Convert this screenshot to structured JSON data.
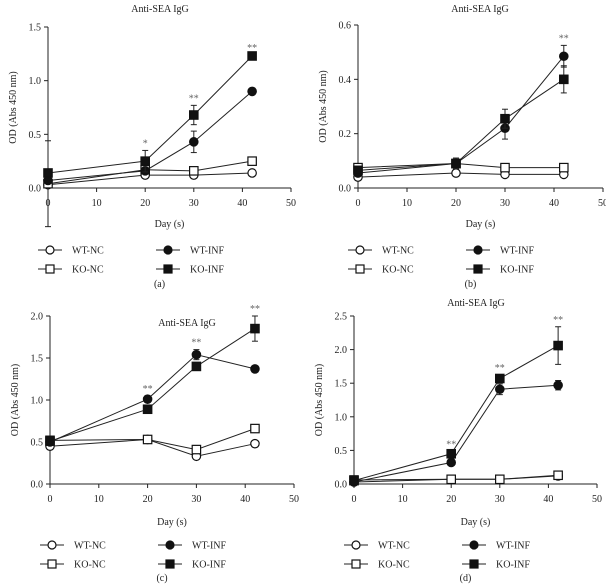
{
  "chart_data": [
    {
      "panel": "(a)",
      "type": "line",
      "title": "Anti-SEA IgG",
      "xlabel": "Day (s)",
      "ylabel": "OD (Abs 450 nm)",
      "xlim": [
        0,
        50
      ],
      "xticks": [
        0,
        10,
        20,
        30,
        40,
        50
      ],
      "ylim": [
        0,
        1.5
      ],
      "yticks": [
        "0.0",
        "0.5",
        "1.0",
        "1.5"
      ],
      "x": [
        0,
        20,
        30,
        42
      ],
      "series": [
        {
          "name": "WT-NC",
          "marker": "open-circle",
          "values": [
            0.03,
            0.12,
            0.12,
            0.14
          ],
          "errors": [
            0.02,
            0.02,
            0.01,
            0.01
          ]
        },
        {
          "name": "KO-NC",
          "marker": "open-square",
          "values": [
            0.04,
            0.17,
            0.16,
            0.25
          ],
          "errors": [
            0.4,
            0.02,
            0.01,
            0.01
          ]
        },
        {
          "name": "WT-INF",
          "marker": "filled-circle",
          "values": [
            0.07,
            0.16,
            0.43,
            0.9
          ],
          "errors": [
            0.01,
            0.02,
            0.1,
            0.03
          ]
        },
        {
          "name": "KO-INF",
          "marker": "filled-square",
          "values": [
            0.14,
            0.25,
            0.68,
            1.23
          ],
          "errors": [
            0.01,
            0.1,
            0.09,
            0.01
          ]
        }
      ],
      "annotations": [
        {
          "x": 20,
          "text": "*"
        },
        {
          "x": 30,
          "text": "**"
        },
        {
          "x": 42,
          "text": "**"
        }
      ]
    },
    {
      "panel": "(b)",
      "type": "line",
      "title": "Anti-SEA IgG",
      "xlabel": "Day (s)",
      "ylabel": "OD (Abs 450 nm)",
      "xlim": [
        0,
        50
      ],
      "xticks": [
        0,
        10,
        20,
        30,
        40,
        50
      ],
      "ylim": [
        0,
        0.6
      ],
      "yticks": [
        "0.0",
        "0.2",
        "0.4",
        "0.6"
      ],
      "x": [
        0,
        20,
        30,
        42
      ],
      "series": [
        {
          "name": "WT-NC",
          "marker": "open-circle",
          "values": [
            0.04,
            0.055,
            0.05,
            0.05
          ],
          "errors": [
            0,
            0,
            0,
            0
          ]
        },
        {
          "name": "KO-NC",
          "marker": "open-square",
          "values": [
            0.075,
            0.09,
            0.075,
            0.075
          ],
          "errors": [
            0,
            0.01,
            0,
            0
          ]
        },
        {
          "name": "WT-INF",
          "marker": "filled-circle",
          "values": [
            0.055,
            0.09,
            0.22,
            0.485
          ],
          "errors": [
            0,
            0.02,
            0.04,
            0.04
          ]
        },
        {
          "name": "KO-INF",
          "marker": "filled-square",
          "values": [
            0.065,
            0.09,
            0.255,
            0.4
          ],
          "errors": [
            0,
            0.02,
            0.035,
            0.05
          ]
        }
      ],
      "annotations": [
        {
          "x": 42,
          "text": "**"
        }
      ]
    },
    {
      "panel": "(c)",
      "type": "line",
      "title": "Anti-SEA IgG",
      "xlabel": "Day (s)",
      "ylabel": "OD (Abs 450 nm)",
      "xlim": [
        0,
        50
      ],
      "xticks": [
        0,
        10,
        20,
        30,
        40,
        50
      ],
      "ylim": [
        0,
        2.0
      ],
      "yticks": [
        "0.0",
        "0.5",
        "1.0",
        "1.5",
        "2.0"
      ],
      "x": [
        0,
        20,
        30,
        42
      ],
      "series": [
        {
          "name": "WT-NC",
          "marker": "open-circle",
          "values": [
            0.45,
            0.53,
            0.33,
            0.48
          ],
          "errors": [
            0,
            0.02,
            0,
            0
          ]
        },
        {
          "name": "KO-NC",
          "marker": "open-square",
          "values": [
            0.52,
            0.53,
            0.41,
            0.66
          ],
          "errors": [
            0,
            0.03,
            0,
            0
          ]
        },
        {
          "name": "WT-INF",
          "marker": "filled-circle",
          "values": [
            0.5,
            1.01,
            1.54,
            1.37
          ],
          "errors": [
            0,
            0.04,
            0.06,
            0
          ]
        },
        {
          "name": "KO-INF",
          "marker": "filled-square",
          "values": [
            0.51,
            0.89,
            1.4,
            1.85
          ],
          "errors": [
            0,
            0.04,
            0.04,
            0.15
          ]
        }
      ],
      "annotations": [
        {
          "x": 20,
          "text": "**"
        },
        {
          "x": 30,
          "text": "**"
        },
        {
          "x": 42,
          "text": "**"
        }
      ]
    },
    {
      "panel": "(d)",
      "type": "line",
      "title": "Anti-SEA IgG",
      "xlabel": "Day (s)",
      "ylabel": "OD (Abs 450 nm)",
      "xlim": [
        0,
        50
      ],
      "xticks": [
        0,
        10,
        20,
        30,
        40,
        50
      ],
      "ylim": [
        0,
        2.5
      ],
      "yticks": [
        "0.0",
        "0.5",
        "1.0",
        "1.5",
        "2.0",
        "2.5"
      ],
      "x": [
        0,
        20,
        30,
        42
      ],
      "series": [
        {
          "name": "WT-NC",
          "marker": "open-circle",
          "values": [
            0.03,
            0.07,
            0.07,
            0.12
          ],
          "errors": [
            0,
            0.02,
            0.02,
            0.03
          ]
        },
        {
          "name": "KO-NC",
          "marker": "open-square",
          "values": [
            0.06,
            0.07,
            0.07,
            0.13
          ],
          "errors": [
            0,
            0.02,
            0.02,
            0.03
          ]
        },
        {
          "name": "WT-INF",
          "marker": "filled-circle",
          "values": [
            0.03,
            0.32,
            1.41,
            1.47
          ],
          "errors": [
            0,
            0.02,
            0.08,
            0.07
          ]
        },
        {
          "name": "KO-INF",
          "marker": "filled-square",
          "values": [
            0.05,
            0.45,
            1.57,
            2.06
          ],
          "errors": [
            0,
            0.03,
            0.05,
            0.28
          ]
        }
      ],
      "annotations": [
        {
          "x": 20,
          "text": "**"
        },
        {
          "x": 30,
          "text": "**"
        },
        {
          "x": 42,
          "text": "**"
        }
      ]
    }
  ]
}
